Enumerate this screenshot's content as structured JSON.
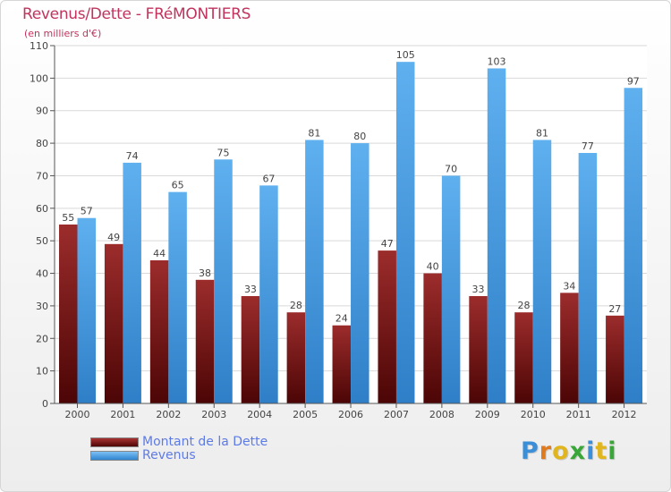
{
  "title": "Revenus/Dette - FRéMONTIERS",
  "subtitle": "(en milliers d'€)",
  "chart_data": {
    "type": "bar",
    "categories": [
      "2000",
      "2001",
      "2002",
      "2003",
      "2004",
      "2005",
      "2006",
      "2007",
      "2008",
      "2009",
      "2010",
      "2011",
      "2012"
    ],
    "series": [
      {
        "name": "Montant de la Dette",
        "color": "#6d1515",
        "values": [
          55,
          49,
          44,
          38,
          33,
          28,
          24,
          47,
          40,
          33,
          28,
          34,
          27
        ]
      },
      {
        "name": "Revenus",
        "color": "#4ea3e6",
        "values": [
          57,
          74,
          65,
          75,
          67,
          81,
          80,
          105,
          70,
          103,
          81,
          77,
          97
        ]
      }
    ],
    "ylim": [
      0,
      110
    ],
    "yticks": [
      0,
      10,
      20,
      30,
      40,
      50,
      60,
      70,
      80,
      90,
      100,
      110
    ],
    "grid": true,
    "legend_position": "bottom-left"
  },
  "legend": {
    "dette_label": "Montant de la Dette",
    "revenus_label": "Revenus"
  },
  "logo": {
    "letters": [
      "P",
      "r",
      "o",
      "x",
      "i",
      "t",
      "i"
    ],
    "colors": [
      "#3a8fd8",
      "#e07a1e",
      "#e0b51e",
      "#3aa63a",
      "#3a8fd8",
      "#e0b51e",
      "#3aa63a"
    ]
  }
}
